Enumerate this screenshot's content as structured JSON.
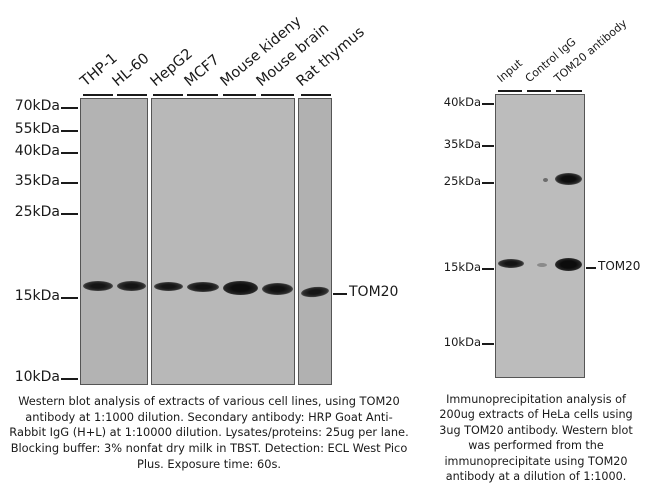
{
  "left_blot": {
    "lanes": [
      "THP-1",
      "HL-60",
      "HepG2",
      "MCF7",
      "Mouse kideny",
      "Mouse brain",
      "Rat thymus"
    ],
    "markers": [
      "70kDa",
      "55kDa",
      "40kDa",
      "35kDa",
      "25kDa",
      "15kDa",
      "10kDa"
    ],
    "target": "TOM20",
    "caption": "Western blot analysis of extracts of various cell lines, using TOM20 antibody at 1:1000 dilution. Secondary antibody: HRP Goat Anti-Rabbit IgG (H+L) at 1:10000 dilution. Lysates/proteins: 25ug per lane. Blocking buffer: 3% nonfat dry milk in TBST. Detection: ECL West Pico Plus. Exposure time: 60s."
  },
  "right_blot": {
    "lanes": [
      "Input",
      "Control IgG",
      "TOM20 antibody"
    ],
    "markers": [
      "40kDa",
      "35kDa",
      "25kDa",
      "15kDa",
      "10kDa"
    ],
    "target": "TOM20",
    "caption": "Immunoprecipitation analysis of 200ug extracts of HeLa cells using 3ug TOM20 antibody. Western blot was performed from the immunoprecipitate using TOM20 antibody at a dilution of 1:1000."
  }
}
